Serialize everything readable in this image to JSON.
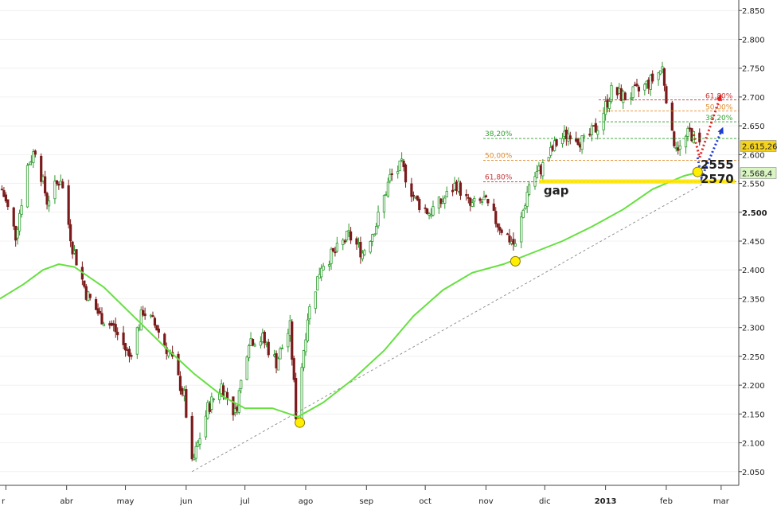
{
  "chart_data": {
    "type": "candlestick",
    "x_ticks": [
      {
        "label": "r",
        "date": "2012-03-01"
      },
      {
        "label": "abr",
        "date": "2012-04-01"
      },
      {
        "label": "may",
        "date": "2012-05-01"
      },
      {
        "label": "jun",
        "date": "2012-06-01"
      },
      {
        "label": "jul",
        "date": "2012-07-01"
      },
      {
        "label": "ago",
        "date": "2012-08-01"
      },
      {
        "label": "sep",
        "date": "2012-09-01"
      },
      {
        "label": "oct",
        "date": "2012-10-01"
      },
      {
        "label": "nov",
        "date": "2012-11-01"
      },
      {
        "label": "dic",
        "date": "2012-12-01"
      },
      {
        "label": "2013",
        "date": "2013-01-01"
      },
      {
        "label": "feb",
        "date": "2013-02-01"
      },
      {
        "label": "mar",
        "date": "2013-03-01"
      }
    ],
    "y_ticks": [
      "2.050",
      "2.100",
      "2.150",
      "2.200",
      "2.250",
      "2.300",
      "2.350",
      "2.400",
      "2.450",
      "2.500",
      "2.550",
      "2.600",
      "2.650",
      "2.700",
      "2.750",
      "2.800",
      "2.850"
    ],
    "y_tick_values": [
      2050,
      2100,
      2150,
      2200,
      2250,
      2300,
      2350,
      2400,
      2450,
      2500,
      2550,
      2600,
      2650,
      2700,
      2750,
      2800,
      2850
    ],
    "ylim": [
      2040,
      2860
    ],
    "xlim": [
      "2012-02-27",
      "2013-03-10"
    ],
    "anchors": [
      [
        "2012-02-28",
        2540
      ],
      [
        "2012-03-06",
        2460
      ],
      [
        "2012-03-12",
        2580
      ],
      [
        "2012-03-16",
        2610
      ],
      [
        "2012-03-22",
        2520
      ],
      [
        "2012-03-29",
        2560
      ],
      [
        "2012-04-04",
        2440
      ],
      [
        "2012-04-11",
        2360
      ],
      [
        "2012-04-18",
        2320
      ],
      [
        "2012-04-25",
        2300
      ],
      [
        "2012-05-03",
        2250
      ],
      [
        "2012-05-10",
        2330
      ],
      [
        "2012-05-17",
        2300
      ],
      [
        "2012-05-24",
        2250
      ],
      [
        "2012-05-31",
        2180
      ],
      [
        "2012-06-04",
        2060
      ],
      [
        "2012-06-12",
        2160
      ],
      [
        "2012-06-19",
        2200
      ],
      [
        "2012-06-26",
        2150
      ],
      [
        "2012-07-03",
        2280
      ],
      [
        "2012-07-10",
        2280
      ],
      [
        "2012-07-17",
        2240
      ],
      [
        "2012-07-24",
        2300
      ],
      [
        "2012-07-27",
        2150
      ],
      [
        "2012-08-02",
        2320
      ],
      [
        "2012-08-09",
        2410
      ],
      [
        "2012-08-16",
        2430
      ],
      [
        "2012-08-23",
        2460
      ],
      [
        "2012-08-30",
        2430
      ],
      [
        "2012-09-06",
        2480
      ],
      [
        "2012-09-13",
        2560
      ],
      [
        "2012-09-19",
        2580
      ],
      [
        "2012-09-26",
        2520
      ],
      [
        "2012-10-03",
        2500
      ],
      [
        "2012-10-10",
        2520
      ],
      [
        "2012-10-17",
        2550
      ],
      [
        "2012-10-24",
        2510
      ],
      [
        "2012-10-31",
        2520
      ],
      [
        "2012-11-07",
        2480
      ],
      [
        "2012-11-14",
        2450
      ],
      [
        "2012-11-16",
        2440
      ],
      [
        "2012-11-23",
        2550
      ],
      [
        "2012-11-30",
        2580
      ],
      [
        "2012-12-07",
        2620
      ],
      [
        "2012-12-14",
        2640
      ],
      [
        "2012-12-21",
        2620
      ],
      [
        "2012-12-28",
        2650
      ],
      [
        "2013-01-04",
        2710
      ],
      [
        "2013-01-11",
        2700
      ],
      [
        "2013-01-18",
        2710
      ],
      [
        "2013-01-25",
        2730
      ],
      [
        "2013-01-30",
        2750
      ],
      [
        "2013-02-04",
        2630
      ],
      [
        "2013-02-08",
        2610
      ],
      [
        "2013-02-13",
        2640
      ],
      [
        "2013-02-18",
        2615
      ]
    ],
    "moving_average": [
      [
        "2012-02-27",
        2350
      ],
      [
        "2012-03-10",
        2375
      ],
      [
        "2012-03-20",
        2400
      ],
      [
        "2012-03-28",
        2410
      ],
      [
        "2012-04-05",
        2405
      ],
      [
        "2012-04-20",
        2370
      ],
      [
        "2012-05-05",
        2320
      ],
      [
        "2012-05-20",
        2270
      ],
      [
        "2012-06-05",
        2220
      ],
      [
        "2012-06-20",
        2180
      ],
      [
        "2012-07-01",
        2160
      ],
      [
        "2012-07-15",
        2160
      ],
      [
        "2012-07-28",
        2145
      ],
      [
        "2012-08-10",
        2170
      ],
      [
        "2012-08-25",
        2210
      ],
      [
        "2012-09-10",
        2260
      ],
      [
        "2012-09-25",
        2320
      ],
      [
        "2012-10-10",
        2365
      ],
      [
        "2012-10-25",
        2395
      ],
      [
        "2012-11-10",
        2410
      ],
      [
        "2012-11-25",
        2430
      ],
      [
        "2012-12-10",
        2450
      ],
      [
        "2012-12-25",
        2475
      ],
      [
        "2013-01-10",
        2505
      ],
      [
        "2013-01-25",
        2540
      ],
      [
        "2013-02-10",
        2563
      ],
      [
        "2013-02-18",
        2570
      ]
    ],
    "trendline": [
      [
        "2012-06-04",
        2050
      ],
      [
        "2013-02-20",
        2550
      ]
    ],
    "markers": [
      {
        "date": "2012-07-29",
        "value": 2135
      },
      {
        "date": "2012-11-16",
        "value": 2415
      },
      {
        "date": "2013-02-17",
        "value": 2570
      }
    ],
    "fib_left": [
      {
        "label": "38,20%",
        "value": 2628,
        "color": "#2e9e2e"
      },
      {
        "label": "50,00%",
        "value": 2590,
        "color": "#e08a2a"
      },
      {
        "label": "61,80%",
        "value": 2553,
        "color": "#c83232"
      }
    ],
    "fib_right": [
      {
        "label": "61,80%",
        "value": 2695,
        "color": "#c83232"
      },
      {
        "label": "50,00%",
        "value": 2676,
        "color": "#e08a2a"
      },
      {
        "label": "38,20%",
        "value": 2657,
        "color": "#2e9e2e"
      }
    ],
    "gap_zone": {
      "start": "2012-11-28",
      "end": "2013-03-08",
      "low": 2550,
      "high": 2557,
      "label": "gap"
    },
    "support_labels": [
      "2555",
      "2570"
    ],
    "price_badges": [
      {
        "text": "2.615,26",
        "value": 2615,
        "bg": "#f4d21e"
      },
      {
        "text": "2.568,4",
        "value": 2568,
        "bg": "#d9f5c2"
      }
    ],
    "projections": [
      {
        "color": "#e02020",
        "points": [
          [
            "2013-02-15",
            2635
          ],
          [
            "2013-02-18",
            2595
          ],
          [
            "2013-03-01",
            2705
          ]
        ]
      },
      {
        "color": "#1e3cd2",
        "points": [
          [
            "2013-02-17",
            2595
          ],
          [
            "2013-02-19",
            2560
          ],
          [
            "2013-03-02",
            2648
          ]
        ]
      }
    ],
    "colors": {
      "ma": "#66e040",
      "up": "#2a9a2a",
      "down": "#7a1a1a",
      "axis": "#444444",
      "trend": "#888888"
    }
  }
}
